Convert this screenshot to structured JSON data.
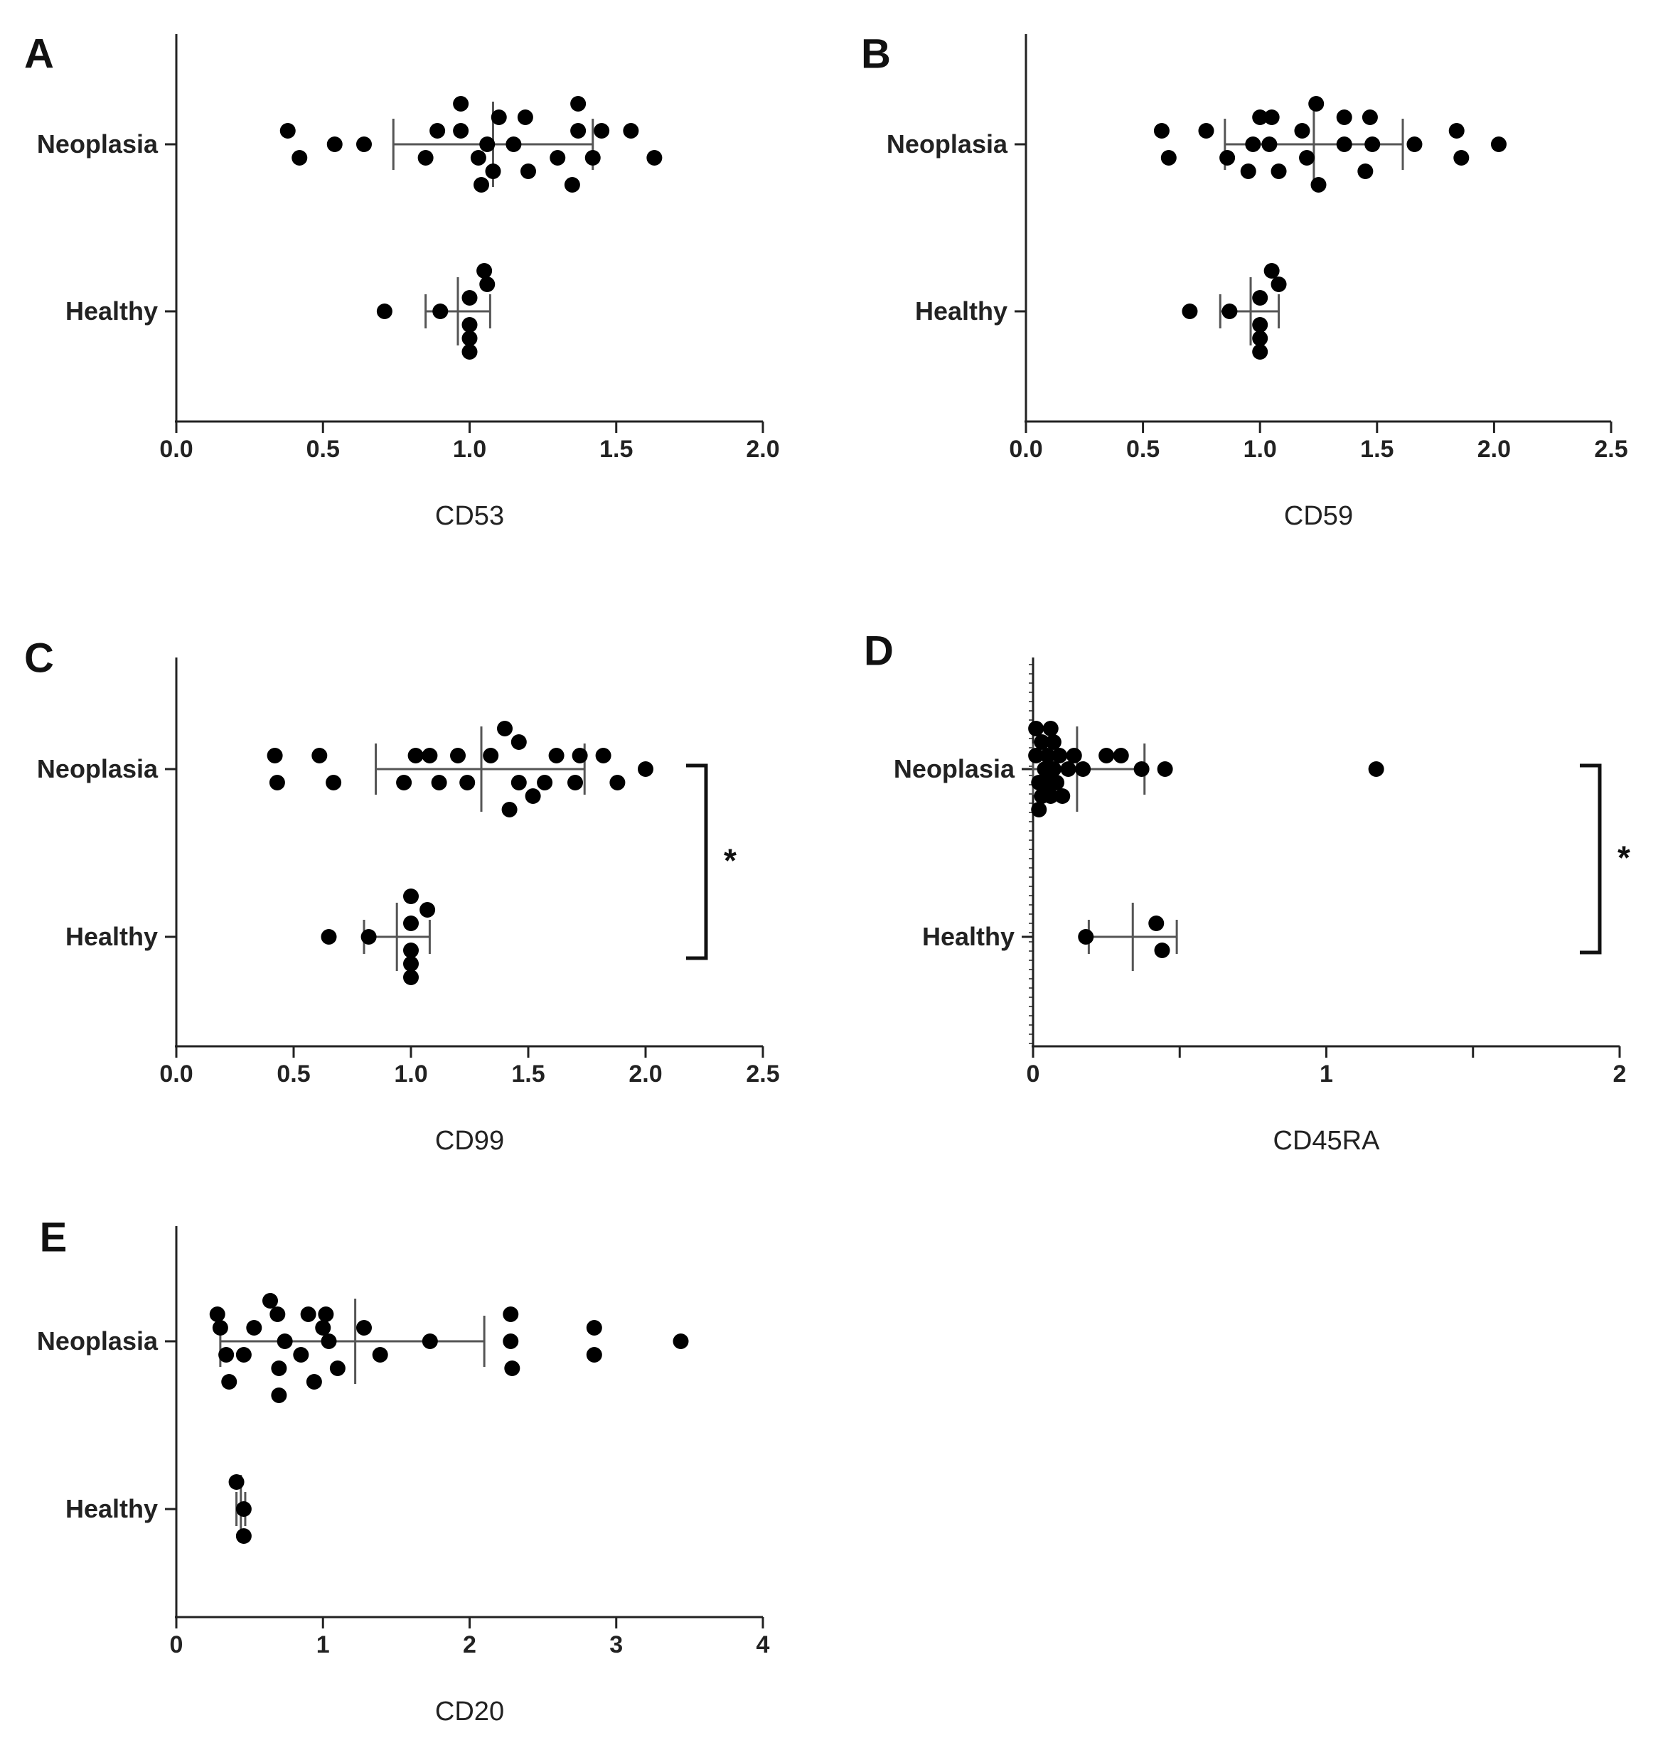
{
  "colors": {
    "axis": "#222222",
    "point": "#000000",
    "errorbar": "#555555",
    "background": "#ffffff"
  },
  "chart_data": [
    {
      "panel": "A",
      "type": "scatter",
      "xlabel": "CD53",
      "xlim": [
        0,
        2
      ],
      "xticks": [
        0,
        0.5,
        1,
        1.5,
        2
      ],
      "xtick_labels": [
        "0.0",
        "0.5",
        "1.0",
        "1.5",
        "2.0"
      ],
      "categories": [
        "Neoplasia",
        "Healthy"
      ],
      "series": [
        {
          "name": "Neoplasia",
          "mean": 1.08,
          "sd_low": 0.74,
          "sd_high": 1.42,
          "points": [
            {
              "x": 0.38,
              "j": 1
            },
            {
              "x": 0.42,
              "j": -1
            },
            {
              "x": 0.54,
              "j": 0
            },
            {
              "x": 0.64,
              "j": 0
            },
            {
              "x": 0.85,
              "j": -1
            },
            {
              "x": 0.89,
              "j": 1
            },
            {
              "x": 0.97,
              "j": 1
            },
            {
              "x": 0.97,
              "j": 3
            },
            {
              "x": 1.03,
              "j": -1
            },
            {
              "x": 1.04,
              "j": -3
            },
            {
              "x": 1.06,
              "j": 0
            },
            {
              "x": 1.08,
              "j": -2
            },
            {
              "x": 1.1,
              "j": 2
            },
            {
              "x": 1.15,
              "j": 0
            },
            {
              "x": 1.19,
              "j": 2
            },
            {
              "x": 1.2,
              "j": -2
            },
            {
              "x": 1.3,
              "j": -1
            },
            {
              "x": 1.35,
              "j": -3
            },
            {
              "x": 1.37,
              "j": 3
            },
            {
              "x": 1.37,
              "j": 1
            },
            {
              "x": 1.42,
              "j": -1
            },
            {
              "x": 1.45,
              "j": 1
            },
            {
              "x": 1.55,
              "j": 1
            },
            {
              "x": 1.63,
              "j": -1
            }
          ]
        },
        {
          "name": "Healthy",
          "mean": 0.96,
          "sd_low": 0.85,
          "sd_high": 1.07,
          "points": [
            {
              "x": 0.71,
              "j": 0
            },
            {
              "x": 0.9,
              "j": 0
            },
            {
              "x": 1.0,
              "j": 1
            },
            {
              "x": 1.0,
              "j": -1
            },
            {
              "x": 1.0,
              "j": -2
            },
            {
              "x": 1.0,
              "j": -3
            },
            {
              "x": 1.05,
              "j": 3
            },
            {
              "x": 1.06,
              "j": 2
            }
          ]
        }
      ],
      "significance": ""
    },
    {
      "panel": "B",
      "type": "scatter",
      "xlabel": "CD59",
      "xlim": [
        0,
        2.5
      ],
      "xticks": [
        0,
        0.5,
        1,
        1.5,
        2,
        2.5
      ],
      "xtick_labels": [
        "0.0",
        "0.5",
        "1.0",
        "1.5",
        "2.0",
        "2.5"
      ],
      "categories": [
        "Neoplasia",
        "Healthy"
      ],
      "series": [
        {
          "name": "Neoplasia",
          "mean": 1.23,
          "sd_low": 0.85,
          "sd_high": 1.61,
          "points": [
            {
              "x": 0.58,
              "j": 1
            },
            {
              "x": 0.61,
              "j": -1
            },
            {
              "x": 0.77,
              "j": 1
            },
            {
              "x": 0.86,
              "j": -1
            },
            {
              "x": 0.95,
              "j": -2
            },
            {
              "x": 0.97,
              "j": 0
            },
            {
              "x": 1.0,
              "j": 2
            },
            {
              "x": 1.04,
              "j": 0
            },
            {
              "x": 1.05,
              "j": 2
            },
            {
              "x": 1.08,
              "j": -2
            },
            {
              "x": 1.18,
              "j": 1
            },
            {
              "x": 1.2,
              "j": -1
            },
            {
              "x": 1.24,
              "j": 3
            },
            {
              "x": 1.25,
              "j": -3
            },
            {
              "x": 1.36,
              "j": 0
            },
            {
              "x": 1.36,
              "j": 2
            },
            {
              "x": 1.45,
              "j": -2
            },
            {
              "x": 1.47,
              "j": 2
            },
            {
              "x": 1.48,
              "j": 0
            },
            {
              "x": 1.66,
              "j": 0
            },
            {
              "x": 1.84,
              "j": 1
            },
            {
              "x": 1.86,
              "j": -1
            },
            {
              "x": 2.02,
              "j": 0
            }
          ]
        },
        {
          "name": "Healthy",
          "mean": 0.96,
          "sd_low": 0.83,
          "sd_high": 1.08,
          "points": [
            {
              "x": 0.7,
              "j": 0
            },
            {
              "x": 0.87,
              "j": 0
            },
            {
              "x": 1.0,
              "j": 1
            },
            {
              "x": 1.0,
              "j": -1
            },
            {
              "x": 1.0,
              "j": -2
            },
            {
              "x": 1.0,
              "j": -3
            },
            {
              "x": 1.05,
              "j": 3
            },
            {
              "x": 1.08,
              "j": 2
            }
          ]
        }
      ],
      "significance": ""
    },
    {
      "panel": "C",
      "type": "scatter",
      "xlabel": "CD99",
      "xlim": [
        0,
        2.5
      ],
      "xticks": [
        0,
        0.5,
        1,
        1.5,
        2,
        2.5
      ],
      "xtick_labels": [
        "0.0",
        "0.5",
        "1.0",
        "1.5",
        "2.0",
        "2.5"
      ],
      "categories": [
        "Neoplasia",
        "Healthy"
      ],
      "series": [
        {
          "name": "Neoplasia",
          "mean": 1.3,
          "sd_low": 0.85,
          "sd_high": 1.74,
          "points": [
            {
              "x": 0.42,
              "j": 1
            },
            {
              "x": 0.43,
              "j": -1
            },
            {
              "x": 0.61,
              "j": 1
            },
            {
              "x": 0.67,
              "j": -1
            },
            {
              "x": 0.97,
              "j": -1
            },
            {
              "x": 1.02,
              "j": 1
            },
            {
              "x": 1.08,
              "j": 1
            },
            {
              "x": 1.12,
              "j": -1
            },
            {
              "x": 1.2,
              "j": 1
            },
            {
              "x": 1.24,
              "j": -1
            },
            {
              "x": 1.34,
              "j": 1
            },
            {
              "x": 1.4,
              "j": 3
            },
            {
              "x": 1.42,
              "j": -3
            },
            {
              "x": 1.46,
              "j": 2
            },
            {
              "x": 1.46,
              "j": -1
            },
            {
              "x": 1.52,
              "j": -2
            },
            {
              "x": 1.57,
              "j": -1
            },
            {
              "x": 1.62,
              "j": 1
            },
            {
              "x": 1.7,
              "j": -1
            },
            {
              "x": 1.72,
              "j": 1
            },
            {
              "x": 1.82,
              "j": 1
            },
            {
              "x": 1.88,
              "j": -1
            },
            {
              "x": 2.0,
              "j": 0
            }
          ]
        },
        {
          "name": "Healthy",
          "mean": 0.94,
          "sd_low": 0.8,
          "sd_high": 1.08,
          "points": [
            {
              "x": 0.65,
              "j": 0
            },
            {
              "x": 0.82,
              "j": 0
            },
            {
              "x": 1.0,
              "j": 3
            },
            {
              "x": 1.0,
              "j": 1
            },
            {
              "x": 1.0,
              "j": -1
            },
            {
              "x": 1.0,
              "j": -2
            },
            {
              "x": 1.0,
              "j": -3
            },
            {
              "x": 1.07,
              "j": 2
            }
          ]
        }
      ],
      "significance": "*"
    },
    {
      "panel": "D",
      "type": "scatter",
      "xlabel": "CD45RA",
      "xlim": [
        0,
        2
      ],
      "xticks": [
        0,
        0.5,
        1,
        1.5,
        2
      ],
      "xtick_labels": [
        "0",
        "",
        "1",
        "",
        "2"
      ],
      "categories": [
        "Neoplasia",
        "Healthy"
      ],
      "series": [
        {
          "name": "Neoplasia",
          "mean": 0.15,
          "sd_low": 0.0,
          "sd_high": 0.38,
          "points": [
            {
              "x": 0.01,
              "j": 3
            },
            {
              "x": 0.02,
              "j": -3
            },
            {
              "x": 0.01,
              "j": 1
            },
            {
              "x": 0.02,
              "j": -1
            },
            {
              "x": 0.03,
              "j": 2
            },
            {
              "x": 0.03,
              "j": -2
            },
            {
              "x": 0.04,
              "j": 0
            },
            {
              "x": 0.05,
              "j": 1
            },
            {
              "x": 0.05,
              "j": -1
            },
            {
              "x": 0.06,
              "j": 3
            },
            {
              "x": 0.06,
              "j": -2
            },
            {
              "x": 0.07,
              "j": 0
            },
            {
              "x": 0.07,
              "j": 2
            },
            {
              "x": 0.08,
              "j": -1
            },
            {
              "x": 0.09,
              "j": 1
            },
            {
              "x": 0.1,
              "j": -2
            },
            {
              "x": 0.12,
              "j": 0
            },
            {
              "x": 0.14,
              "j": 1
            },
            {
              "x": 0.17,
              "j": 0
            },
            {
              "x": 0.25,
              "j": 1
            },
            {
              "x": 0.3,
              "j": 1
            },
            {
              "x": 0.37,
              "j": 0
            },
            {
              "x": 0.45,
              "j": 0
            },
            {
              "x": 1.17,
              "j": 0
            }
          ]
        },
        {
          "name": "Healthy",
          "mean": 0.34,
          "sd_low": 0.19,
          "sd_high": 0.49,
          "points": [
            {
              "x": 0.18,
              "j": 0
            },
            {
              "x": 0.42,
              "j": 1
            },
            {
              "x": 0.44,
              "j": -1
            }
          ]
        }
      ],
      "significance": "*"
    },
    {
      "panel": "E",
      "type": "scatter",
      "xlabel": "CD20",
      "xlim": [
        0,
        4
      ],
      "xticks": [
        0,
        1,
        2,
        3,
        4
      ],
      "xtick_labels": [
        "0",
        "1",
        "2",
        "3",
        "4"
      ],
      "categories": [
        "Neoplasia",
        "Healthy"
      ],
      "series": [
        {
          "name": "Neoplasia",
          "mean": 1.22,
          "sd_low": 0.3,
          "sd_high": 2.1,
          "points": [
            {
              "x": 0.28,
              "j": 2
            },
            {
              "x": 0.3,
              "j": 1
            },
            {
              "x": 0.34,
              "j": -1
            },
            {
              "x": 0.36,
              "j": -3
            },
            {
              "x": 0.46,
              "j": -1
            },
            {
              "x": 0.53,
              "j": 1
            },
            {
              "x": 0.64,
              "j": 3
            },
            {
              "x": 0.69,
              "j": 2
            },
            {
              "x": 0.7,
              "j": -2
            },
            {
              "x": 0.7,
              "j": -4
            },
            {
              "x": 0.74,
              "j": 0
            },
            {
              "x": 0.85,
              "j": -1
            },
            {
              "x": 0.9,
              "j": 2
            },
            {
              "x": 0.94,
              "j": -3
            },
            {
              "x": 1.0,
              "j": 1
            },
            {
              "x": 1.02,
              "j": 2
            },
            {
              "x": 1.04,
              "j": 0
            },
            {
              "x": 1.1,
              "j": -2
            },
            {
              "x": 1.28,
              "j": 1
            },
            {
              "x": 1.39,
              "j": -1
            },
            {
              "x": 1.73,
              "j": 0
            },
            {
              "x": 2.28,
              "j": 2
            },
            {
              "x": 2.28,
              "j": 0
            },
            {
              "x": 2.29,
              "j": -2
            },
            {
              "x": 2.85,
              "j": 1
            },
            {
              "x": 2.85,
              "j": -1
            },
            {
              "x": 3.44,
              "j": 0
            }
          ]
        },
        {
          "name": "Healthy",
          "mean": 0.44,
          "sd_low": 0.41,
          "sd_high": 0.47,
          "points": [
            {
              "x": 0.41,
              "j": 2
            },
            {
              "x": 0.46,
              "j": 0
            },
            {
              "x": 0.46,
              "j": -2
            }
          ]
        }
      ],
      "significance": ""
    }
  ]
}
